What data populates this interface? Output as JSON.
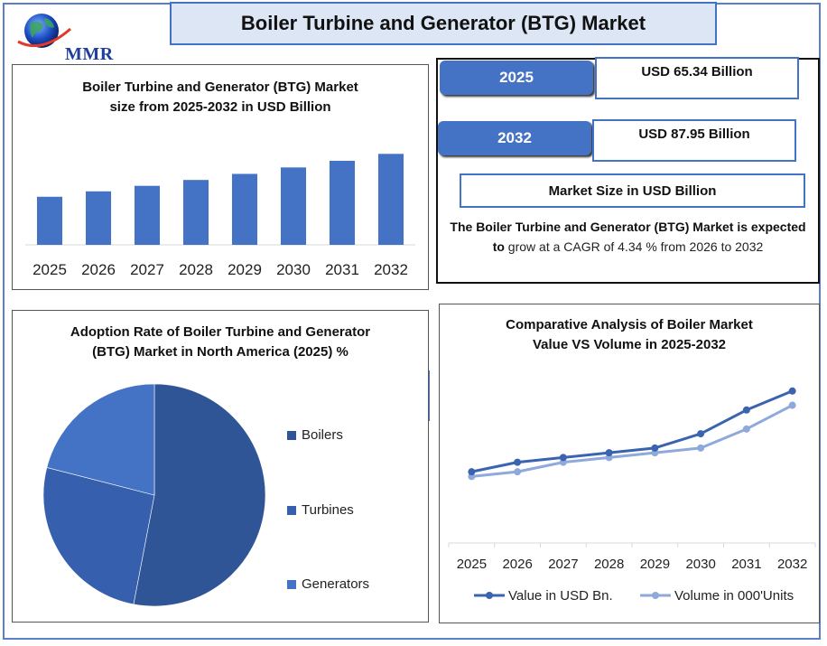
{
  "header": {
    "title": "Boiler Turbine and Generator (BTG) Market",
    "logo_text": "MMR"
  },
  "colors": {
    "accent": "#4472c4",
    "dark_blue": "#2f5597",
    "mid_blue": "#3a63b0",
    "light_series": "#8ea9db",
    "title_bg": "#dce6f5"
  },
  "info": {
    "year1": "2025",
    "value1": "USD 65.34 Billion",
    "year2": "2032",
    "value2": "USD 87.95 Billion",
    "unit_label": "Market Size in USD Billion",
    "desc_bold": "The Boiler Turbine and Generator (BTG) Market is expected to",
    "desc_rest": "grow at a CAGR of 4.34 % from 2026 to 2032"
  },
  "chart_data": [
    {
      "type": "bar",
      "title": "Boiler Turbine and Generator (BTG)  Market size from 2025-2032 in USD Billion",
      "title_lines": [
        "Boiler Turbine and Generator (BTG)  Market",
        "size from 2025-2032 in USD Billion"
      ],
      "categories": [
        "2025",
        "2026",
        "2027",
        "2028",
        "2029",
        "2030",
        "2031",
        "2032"
      ],
      "values": [
        65.34,
        68.2,
        71.1,
        74.2,
        77.4,
        80.8,
        84.3,
        87.95
      ],
      "ylim": [
        40,
        90
      ],
      "grid": false,
      "color": "#4472c4"
    },
    {
      "type": "pie",
      "title": "Adoption Rate of Boiler Turbine and Generator (BTG)  Market in North America (2025) %",
      "title_lines": [
        "Adoption Rate of Boiler Turbine and Generator",
        "(BTG)  Market in North America (2025) %"
      ],
      "labels": [
        "Boilers",
        "Turbines",
        "Generators"
      ],
      "values": [
        53,
        26,
        21
      ],
      "colors": [
        "#2f5597",
        "#3660ae",
        "#4472c4"
      ],
      "legend": "right"
    },
    {
      "type": "line",
      "title": "Comparative Analysis of Boiler  Market Value VS Volume  in 2025-2032",
      "title_lines": [
        "Comparative Analysis of Boiler  Market",
        "Value VS Volume  in 2025-2032"
      ],
      "categories": [
        "2025",
        "2026",
        "2027",
        "2028",
        "2029",
        "2030",
        "2031",
        "2032"
      ],
      "series": [
        {
          "name": "Value in USD Bn.",
          "values": [
            10,
            12,
            13,
            14,
            15,
            18,
            23,
            27
          ],
          "color": "#3a63b0"
        },
        {
          "name": "Volume in 000'Units",
          "values": [
            9,
            10,
            12,
            13,
            14,
            15,
            19,
            24
          ],
          "color": "#8ea9db"
        }
      ],
      "ylim": [
        -5,
        30
      ],
      "legend": "bottom",
      "grid": false
    }
  ]
}
